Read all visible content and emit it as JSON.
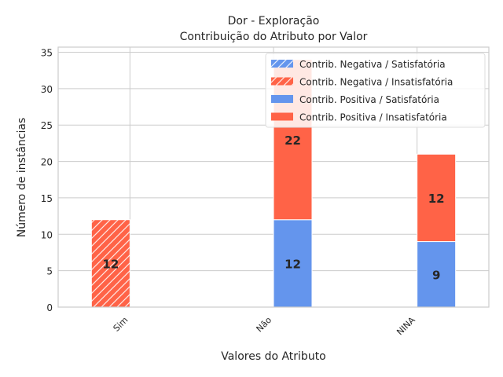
{
  "chart_data": {
    "type": "bar",
    "stacked": true,
    "title": "Dor - Exploração",
    "subtitle": "Contribuição do Atributo por Valor",
    "xlabel": "Valores do Atributo",
    "ylabel": "Número de instâncias",
    "categories": [
      "Sim",
      "Não",
      "NINA"
    ],
    "ylim": [
      0,
      35.7
    ],
    "yticks": [
      0,
      5,
      10,
      15,
      20,
      25,
      30,
      35
    ],
    "grid": true,
    "legend_position": "top-right",
    "series": [
      {
        "name": "Contrib. Negativa / Satisfatória",
        "values": [
          0,
          0,
          0
        ],
        "color": "#6495ED",
        "hatch": true,
        "group": "negativa"
      },
      {
        "name": "Contrib. Negativa / Insatisfatória",
        "values": [
          12,
          0,
          0
        ],
        "color": "#FF6347",
        "hatch": true,
        "group": "negativa"
      },
      {
        "name": "Contrib. Positiva / Satisfatória",
        "values": [
          0,
          12,
          9
        ],
        "color": "#6495ED",
        "hatch": false,
        "group": "positiva"
      },
      {
        "name": "Contrib. Positiva / Insatisfatória",
        "values": [
          0,
          22,
          12
        ],
        "color": "#FF6347",
        "hatch": false,
        "group": "positiva"
      }
    ]
  }
}
